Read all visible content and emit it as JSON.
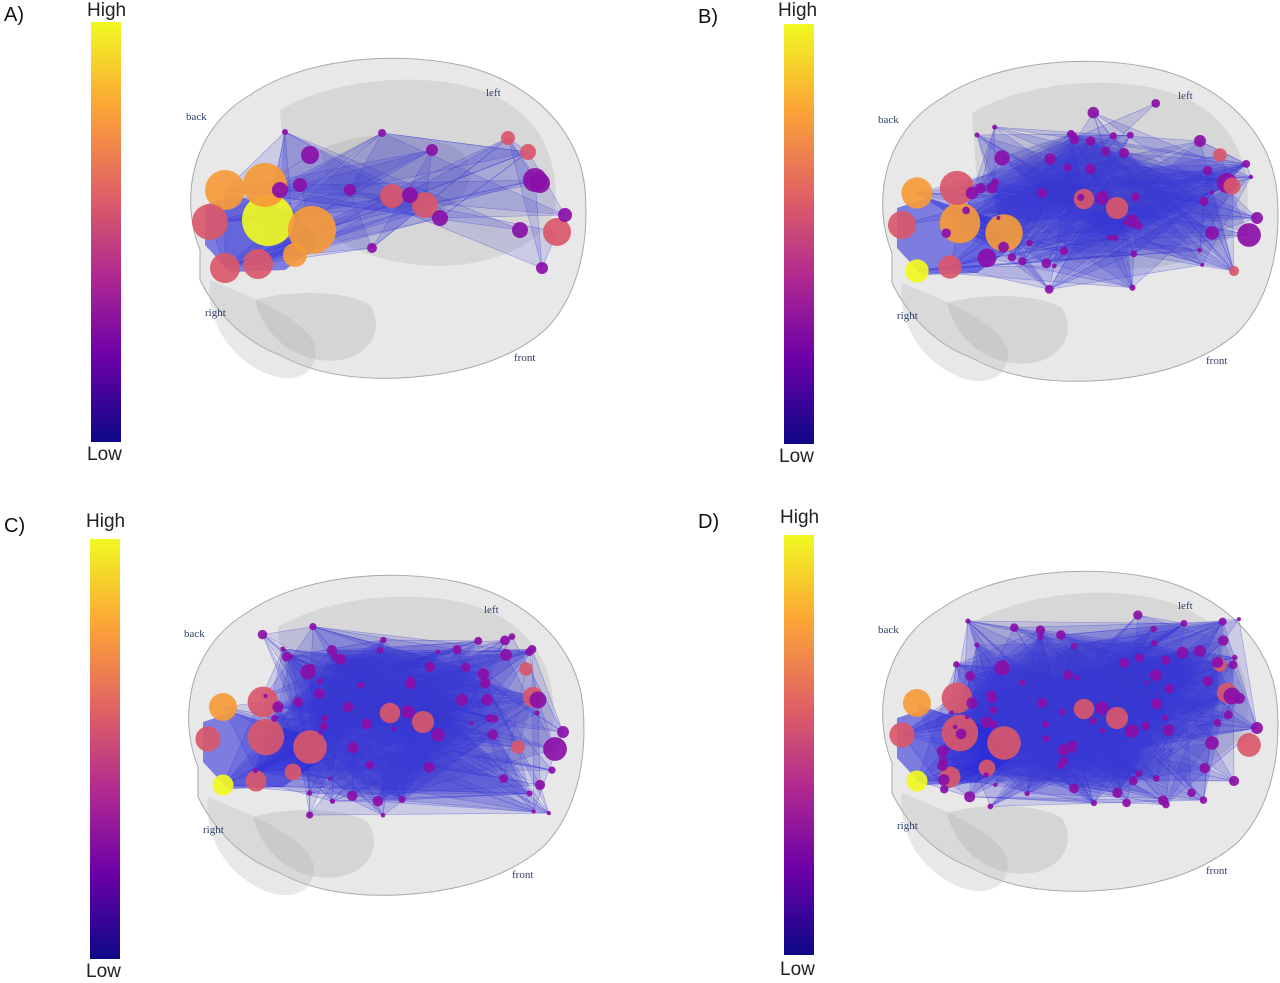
{
  "colors": {
    "colorbar_stops": [
      "#f0f921",
      "#fca636",
      "#e16462",
      "#b12a90",
      "#6a00a8",
      "#0d0887"
    ],
    "brain": "#bdbdbd",
    "edge": "#3b3bd6",
    "node_low": "#8a0fa8",
    "node_mid": "#d8576b",
    "node_high_orange": "#f59a38",
    "node_high_yellow": "#f0f921"
  },
  "colorbar": {
    "high_label": "High",
    "low_label": "Low"
  },
  "orientation": {
    "back": "back",
    "left": "left",
    "right": "right",
    "front": "front"
  },
  "panels": [
    {
      "letter": "A)"
    },
    {
      "letter": "B)"
    },
    {
      "letter": "C)"
    },
    {
      "letter": "D)"
    }
  ]
}
